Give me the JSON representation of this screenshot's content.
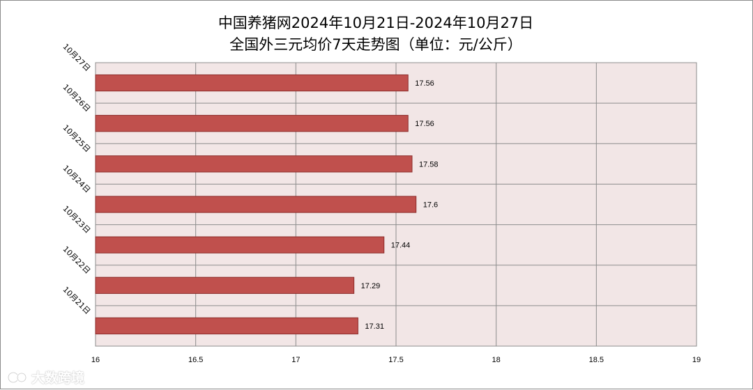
{
  "chart_data": {
    "type": "bar",
    "orientation": "horizontal",
    "title": "中国养猪网2024年10月21日-2024年10月27日",
    "subtitle": "全国外三元均价7天走势图（单位：元/公斤）",
    "categories": [
      "10月27日",
      "10月26日",
      "10月25日",
      "10月24日",
      "10月23日",
      "10月22日",
      "10月21日"
    ],
    "values": [
      17.56,
      17.56,
      17.58,
      17.6,
      17.44,
      17.29,
      17.31
    ],
    "data_labels": [
      "17.56",
      "17.56",
      "17.58",
      "17.6",
      "17.44",
      "17.29",
      "17.31"
    ],
    "xlim": [
      16,
      19
    ],
    "x_ticks": [
      16,
      16.5,
      17,
      17.5,
      18,
      18.5,
      19
    ],
    "x_tick_labels": [
      "16",
      "16.5",
      "17",
      "17.5",
      "18",
      "18.5",
      "19"
    ],
    "grid": true,
    "legend": "none",
    "colors": {
      "bar_fill": "#c0504d",
      "bar_stroke": "#8c2d2b",
      "plot_background": "#f2e6e6",
      "gridline": "#8c8c8c"
    }
  },
  "watermark": {
    "text": "大数跨境",
    "icon": "brand-logo-icon"
  }
}
